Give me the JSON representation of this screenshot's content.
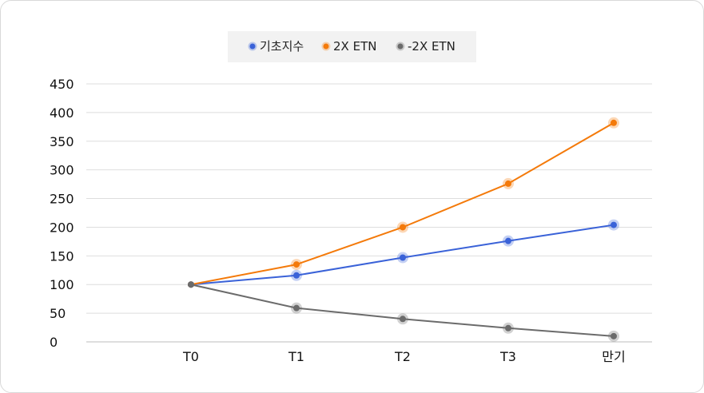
{
  "chart_data": {
    "type": "line",
    "categories": [
      "T0",
      "T1",
      "T2",
      "T3",
      "만기"
    ],
    "series": [
      {
        "name": "기초지수",
        "color": "#3a62d8",
        "values": [
          100,
          116,
          147,
          176,
          204
        ]
      },
      {
        "name": "2X ETN",
        "color": "#f47a0a",
        "values": [
          100,
          135,
          200,
          276,
          382
        ]
      },
      {
        "name": "-2X ETN",
        "color": "#6b6b6b",
        "values": [
          100,
          59,
          40,
          24,
          10
        ]
      }
    ],
    "yticks": [
      0,
      50,
      100,
      150,
      200,
      250,
      300,
      350,
      400,
      450
    ],
    "ylim": [
      0,
      450
    ],
    "grid": true,
    "legend_position": "top-center"
  }
}
